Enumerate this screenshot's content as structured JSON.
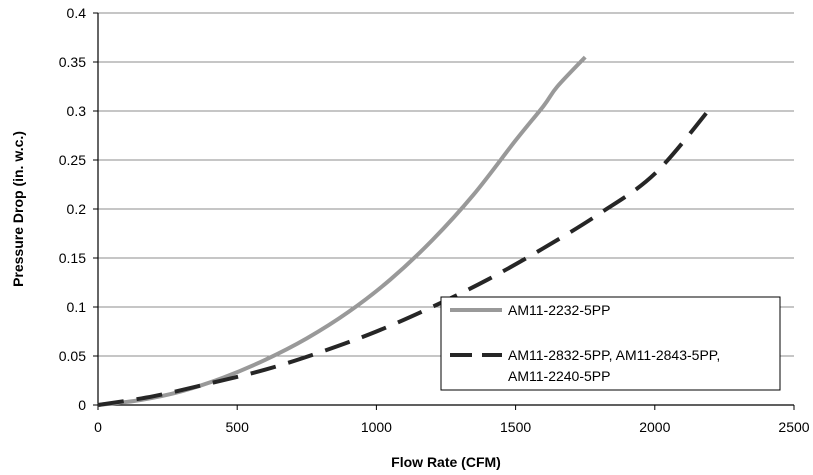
{
  "chart_data": {
    "type": "line",
    "title": "",
    "xlabel": "Flow Rate (CFM)",
    "ylabel": "Pressure Drop (in. w.c.)",
    "xlim": [
      0,
      2500
    ],
    "ylim": [
      0,
      0.4
    ],
    "x_ticks": [
      "0",
      "500",
      "1000",
      "1500",
      "2000",
      "2500"
    ],
    "y_ticks": [
      "0",
      "0.05",
      "0.1",
      "0.15",
      "0.2",
      "0.25",
      "0.3",
      "0.35",
      "0.4"
    ],
    "grid": "horizontal",
    "legend_position": "lower-right",
    "series": [
      {
        "name": "AM11-2232-5PP",
        "style": "solid",
        "color": "#999999",
        "points": [
          [
            0,
            0
          ],
          [
            150,
            0.005
          ],
          [
            300,
            0.014
          ],
          [
            450,
            0.028
          ],
          [
            600,
            0.046
          ],
          [
            750,
            0.068
          ],
          [
            900,
            0.095
          ],
          [
            1050,
            0.128
          ],
          [
            1200,
            0.168
          ],
          [
            1350,
            0.215
          ],
          [
            1500,
            0.27
          ],
          [
            1600,
            0.305
          ],
          [
            1650,
            0.325
          ],
          [
            1750,
            0.355
          ]
        ]
      },
      {
        "name_lines": [
          "AM11-2832-5PP, AM11-2843-5PP,",
          "AM11-2240-5PP"
        ],
        "style": "dashed",
        "color": "#262626",
        "points": [
          [
            0,
            0
          ],
          [
            200,
            0.009
          ],
          [
            400,
            0.022
          ],
          [
            600,
            0.036
          ],
          [
            800,
            0.054
          ],
          [
            1000,
            0.075
          ],
          [
            1200,
            0.1
          ],
          [
            1400,
            0.128
          ],
          [
            1600,
            0.16
          ],
          [
            1800,
            0.195
          ],
          [
            2000,
            0.236
          ],
          [
            2200,
            0.303
          ]
        ]
      }
    ]
  }
}
